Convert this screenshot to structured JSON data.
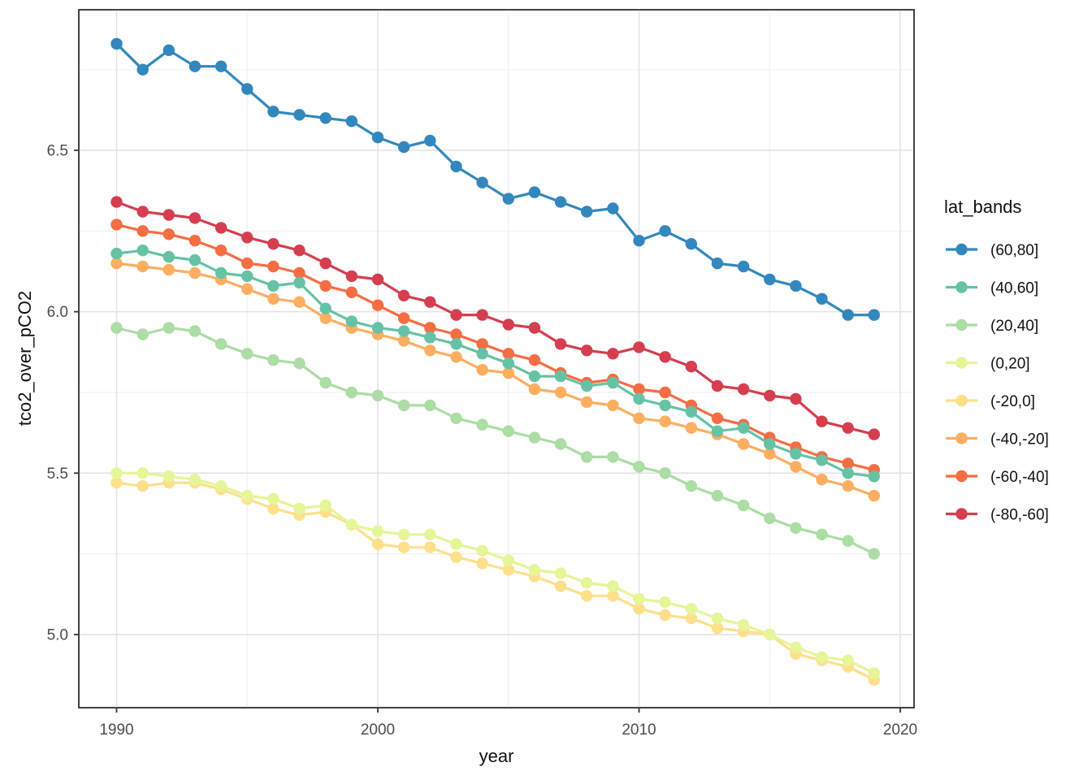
{
  "chart_data": {
    "type": "line",
    "title": "",
    "xlabel": "year",
    "ylabel": "tco2_over_pCO2",
    "legend_title": "lat_bands",
    "legend_position": "right",
    "grid": true,
    "x": [
      1990,
      1991,
      1992,
      1993,
      1994,
      1995,
      1996,
      1997,
      1998,
      1999,
      2000,
      2001,
      2002,
      2003,
      2004,
      2005,
      2006,
      2007,
      2008,
      2009,
      2010,
      2011,
      2012,
      2013,
      2014,
      2015,
      2016,
      2017,
      2018,
      2019
    ],
    "series": [
      {
        "name": "(-80,-60]",
        "color": "#D53E4F",
        "values": [
          6.34,
          6.31,
          6.3,
          6.29,
          6.26,
          6.23,
          6.21,
          6.19,
          6.15,
          6.11,
          6.1,
          6.05,
          6.03,
          5.99,
          5.99,
          5.96,
          5.95,
          5.9,
          5.88,
          5.87,
          5.89,
          5.86,
          5.83,
          5.77,
          5.76,
          5.74,
          5.73,
          5.66,
          5.64,
          5.62
        ]
      },
      {
        "name": "(-60,-40]",
        "color": "#F46D43",
        "values": [
          6.27,
          6.25,
          6.24,
          6.22,
          6.19,
          6.15,
          6.14,
          6.12,
          6.08,
          6.06,
          6.02,
          5.98,
          5.95,
          5.93,
          5.9,
          5.87,
          5.85,
          5.81,
          5.78,
          5.79,
          5.76,
          5.75,
          5.71,
          5.67,
          5.65,
          5.61,
          5.58,
          5.55,
          5.53,
          5.51
        ]
      },
      {
        "name": "(-40,-20]",
        "color": "#FDAE61",
        "values": [
          6.15,
          6.14,
          6.13,
          6.12,
          6.1,
          6.07,
          6.04,
          6.03,
          5.98,
          5.95,
          5.93,
          5.91,
          5.88,
          5.86,
          5.82,
          5.81,
          5.76,
          5.75,
          5.72,
          5.71,
          5.67,
          5.66,
          5.64,
          5.62,
          5.59,
          5.56,
          5.52,
          5.48,
          5.46,
          5.43
        ]
      },
      {
        "name": "(-20,0]",
        "color": "#FEE08B",
        "values": [
          5.47,
          5.46,
          5.47,
          5.47,
          5.45,
          5.42,
          5.39,
          5.37,
          5.38,
          5.34,
          5.28,
          5.27,
          5.27,
          5.24,
          5.22,
          5.2,
          5.18,
          5.15,
          5.12,
          5.12,
          5.08,
          5.06,
          5.05,
          5.02,
          5.01,
          5.0,
          4.94,
          4.92,
          4.9,
          4.86
        ]
      },
      {
        "name": "(0,20]",
        "color": "#E6F598",
        "values": [
          5.5,
          5.5,
          5.49,
          5.48,
          5.46,
          5.43,
          5.42,
          5.39,
          5.4,
          5.34,
          5.32,
          5.31,
          5.31,
          5.28,
          5.26,
          5.23,
          5.2,
          5.19,
          5.16,
          5.15,
          5.11,
          5.1,
          5.08,
          5.05,
          5.03,
          5.0,
          4.96,
          4.93,
          4.92,
          4.88
        ]
      },
      {
        "name": "(20,40]",
        "color": "#ABDDA4",
        "values": [
          5.95,
          5.93,
          5.95,
          5.94,
          5.9,
          5.87,
          5.85,
          5.84,
          5.78,
          5.75,
          5.74,
          5.71,
          5.71,
          5.67,
          5.65,
          5.63,
          5.61,
          5.59,
          5.55,
          5.55,
          5.52,
          5.5,
          5.46,
          5.43,
          5.4,
          5.36,
          5.33,
          5.31,
          5.29,
          5.25
        ]
      },
      {
        "name": "(40,60]",
        "color": "#66C2A5",
        "values": [
          6.18,
          6.19,
          6.17,
          6.16,
          6.12,
          6.11,
          6.08,
          6.09,
          6.01,
          5.97,
          5.95,
          5.94,
          5.92,
          5.9,
          5.87,
          5.84,
          5.8,
          5.8,
          5.77,
          5.78,
          5.73,
          5.71,
          5.69,
          5.63,
          5.64,
          5.59,
          5.56,
          5.54,
          5.5,
          5.49
        ]
      },
      {
        "name": "(60,80]",
        "color": "#3288BD",
        "values": [
          6.83,
          6.75,
          6.81,
          6.76,
          6.76,
          6.69,
          6.62,
          6.61,
          6.6,
          6.59,
          6.54,
          6.51,
          6.53,
          6.45,
          6.4,
          6.35,
          6.37,
          6.34,
          6.31,
          6.32,
          6.22,
          6.25,
          6.21,
          6.15,
          6.14,
          6.1,
          6.08,
          6.04,
          5.99,
          5.99
        ]
      }
    ],
    "x_ticks": [
      1990,
      2000,
      2010,
      2020
    ],
    "y_ticks": [
      5.0,
      5.5,
      6.0,
      6.5
    ],
    "x_minor_ticks": [
      1995,
      2005,
      2015
    ],
    "y_minor_ticks": [
      5.25,
      5.75,
      6.25,
      6.75
    ],
    "xlim": [
      1988.6,
      2020.5
    ],
    "ylim": [
      4.77,
      6.94
    ]
  }
}
